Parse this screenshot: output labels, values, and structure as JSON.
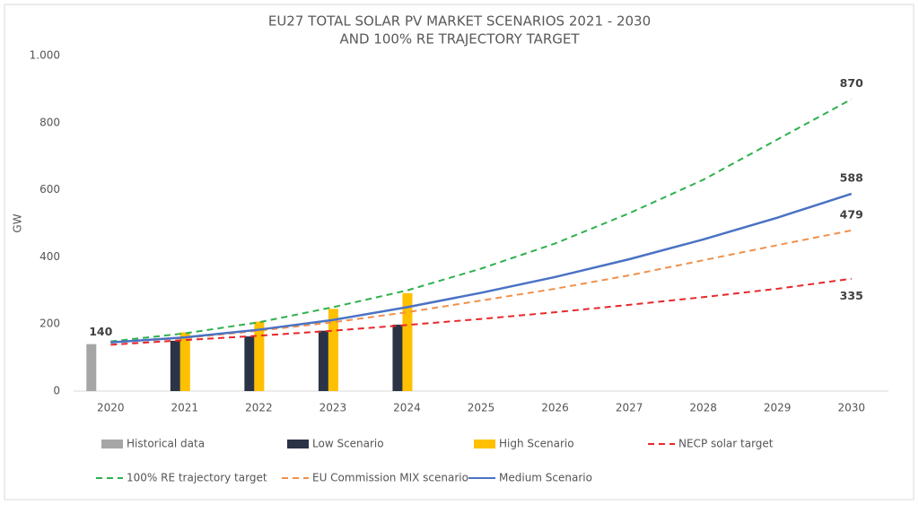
{
  "chart_data": {
    "type": "combo",
    "title": [
      "EU27 TOTAL SOLAR PV MARKET SCENARIOS  2021 - 2030",
      "AND 100% RE TRAJECTORY TARGET"
    ],
    "y_label": "GW",
    "categories": [
      "2020",
      "2021",
      "2022",
      "2023",
      "2024",
      "2025",
      "2026",
      "2027",
      "2028",
      "2029",
      "2030"
    ],
    "ylim": [
      0,
      1000
    ],
    "yticks": [
      0,
      200,
      400,
      600,
      800,
      {
        "value": 1000,
        "label": "1.000"
      }
    ],
    "series": [
      {
        "name": "Historical data",
        "kind": "bar",
        "color": "#a6a6a6",
        "values": [
          140,
          null,
          null,
          null,
          null,
          null,
          null,
          null,
          null,
          null,
          null
        ],
        "value_labels": [
          "140",
          null,
          null,
          null,
          null,
          null,
          null,
          null,
          null,
          null,
          null
        ]
      },
      {
        "name": "Low Scenario",
        "kind": "bar",
        "color": "#2b3446",
        "values": [
          null,
          150,
          163,
          180,
          198,
          null,
          null,
          null,
          null,
          null,
          null
        ]
      },
      {
        "name": "High Scenario",
        "kind": "bar",
        "color": "#ffc000",
        "values": [
          null,
          175,
          207,
          245,
          292,
          null,
          null,
          null,
          null,
          null,
          null
        ]
      },
      {
        "name": "NECP solar target",
        "kind": "line",
        "dash": true,
        "color": "#e8272b",
        "values": [
          138,
          152,
          165,
          180,
          197,
          215,
          235,
          257,
          280,
          305,
          335
        ],
        "value_labels": [
          null,
          null,
          null,
          null,
          null,
          null,
          null,
          null,
          null,
          null,
          "335"
        ]
      },
      {
        "name": "100% RE trajectory target",
        "kind": "line",
        "dash": true,
        "color": "#2fb04e",
        "values": [
          148,
          172,
          205,
          250,
          300,
          365,
          440,
          530,
          630,
          750,
          870
        ],
        "value_labels": [
          null,
          null,
          null,
          null,
          null,
          null,
          null,
          null,
          null,
          null,
          "870"
        ]
      },
      {
        "name": "EU Commission MIX scenario",
        "kind": "line",
        "dash": true,
        "color": "#f0904a",
        "values": [
          145,
          158,
          180,
          205,
          235,
          270,
          305,
          345,
          390,
          435,
          479
        ],
        "value_labels": [
          null,
          null,
          null,
          null,
          null,
          null,
          null,
          null,
          null,
          null,
          "479"
        ]
      },
      {
        "name": "Medium Scenario",
        "kind": "line",
        "dash": false,
        "color": "#4a72c4",
        "values": [
          145,
          160,
          183,
          212,
          250,
          293,
          340,
          393,
          452,
          517,
          588
        ],
        "value_labels": [
          null,
          null,
          null,
          null,
          null,
          null,
          null,
          null,
          null,
          null,
          "588"
        ]
      }
    ]
  }
}
